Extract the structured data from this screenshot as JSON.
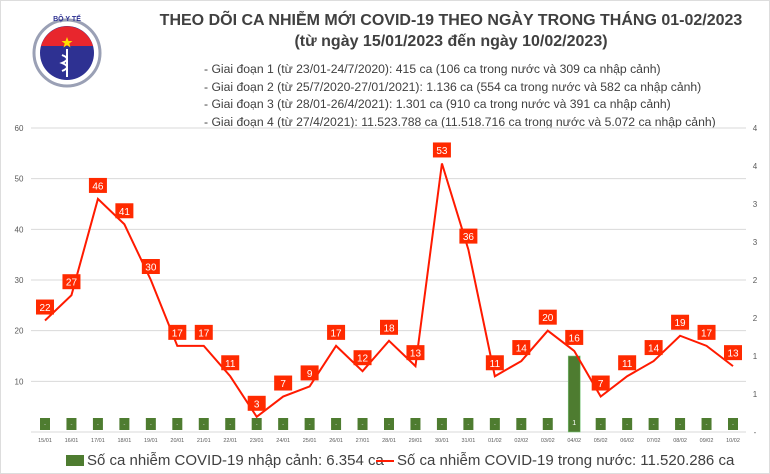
{
  "header": {
    "logo_text": "BỘ Y TẾ - MINISTRY OF HEALTH",
    "title": "THEO DÕI CA NHIỄM MỚI COVID-19 THEO NGÀY TRONG THÁNG 01-02/2023",
    "subtitle": "(từ ngày 15/01/2023 đến ngày 10/02/2023)",
    "phases": [
      "- Giai đoạn 1 (từ 23/01-24/7/2020): 415 ca (106 ca trong nước và 309 ca nhập cảnh)",
      "- Giai đoạn 2 (từ 25/7/2020-27/01/2021): 1.136 ca (554 ca trong nước và 582 ca nhập cảnh)",
      "- Giai đoạn 3 (từ 28/01-26/4/2021): 1.301 ca (910 ca trong nước và 391 ca nhập cảnh)",
      "- Giai đoạn 4 (từ 27/4/2021): 11.523.788 ca (11.518.716 ca trong nước và 5.072 ca nhập cảnh)"
    ]
  },
  "colors": {
    "bar": "#4e7c30",
    "line": "#ff1a00",
    "label_bg": "#ff2a00",
    "grid": "#d9d9d9",
    "text": "#404040"
  },
  "chart_data": {
    "type": "bar+line",
    "categories": [
      "15/01",
      "16/01",
      "17/01",
      "18/01",
      "19/01",
      "20/01",
      "21/01",
      "22/01",
      "23/01",
      "24/01",
      "25/01",
      "26/01",
      "27/01",
      "28/01",
      "29/01",
      "30/01",
      "31/01",
      "01/02",
      "02/02",
      "03/02",
      "04/02",
      "05/02",
      "06/02",
      "07/02",
      "08/02",
      "09/02",
      "10/02"
    ],
    "series": [
      {
        "name": "Số ca nhiễm COVID-19 nhập cảnh: 6.354 ca",
        "type": "bar",
        "axis": "right",
        "values": [
          0,
          0,
          0,
          0,
          0,
          0,
          0,
          0,
          0,
          0,
          0,
          0,
          0,
          0,
          0,
          0,
          0,
          0,
          0,
          0,
          1,
          0,
          0,
          0,
          0,
          0,
          0
        ]
      },
      {
        "name": "Số ca nhiễm COVID-19 trong nước: 11.520.286 ca",
        "type": "line",
        "axis": "left",
        "values": [
          22,
          27,
          46,
          41,
          30,
          17,
          17,
          11,
          3,
          7,
          9,
          17,
          12,
          18,
          13,
          53,
          36,
          11,
          14,
          20,
          16,
          7,
          11,
          14,
          19,
          17,
          13
        ]
      }
    ],
    "left_axis": {
      "range": [
        0,
        60
      ],
      "ticks": [
        "",
        "10",
        "20",
        "30",
        "40",
        "50",
        "60"
      ]
    },
    "right_axis": {
      "range": [
        0,
        4
      ],
      "ticks": [
        "-",
        "1",
        "1",
        "2",
        "2",
        "3",
        "3",
        "4",
        "4"
      ]
    },
    "zero_label": "-",
    "grid": true,
    "legend": "bottom"
  }
}
